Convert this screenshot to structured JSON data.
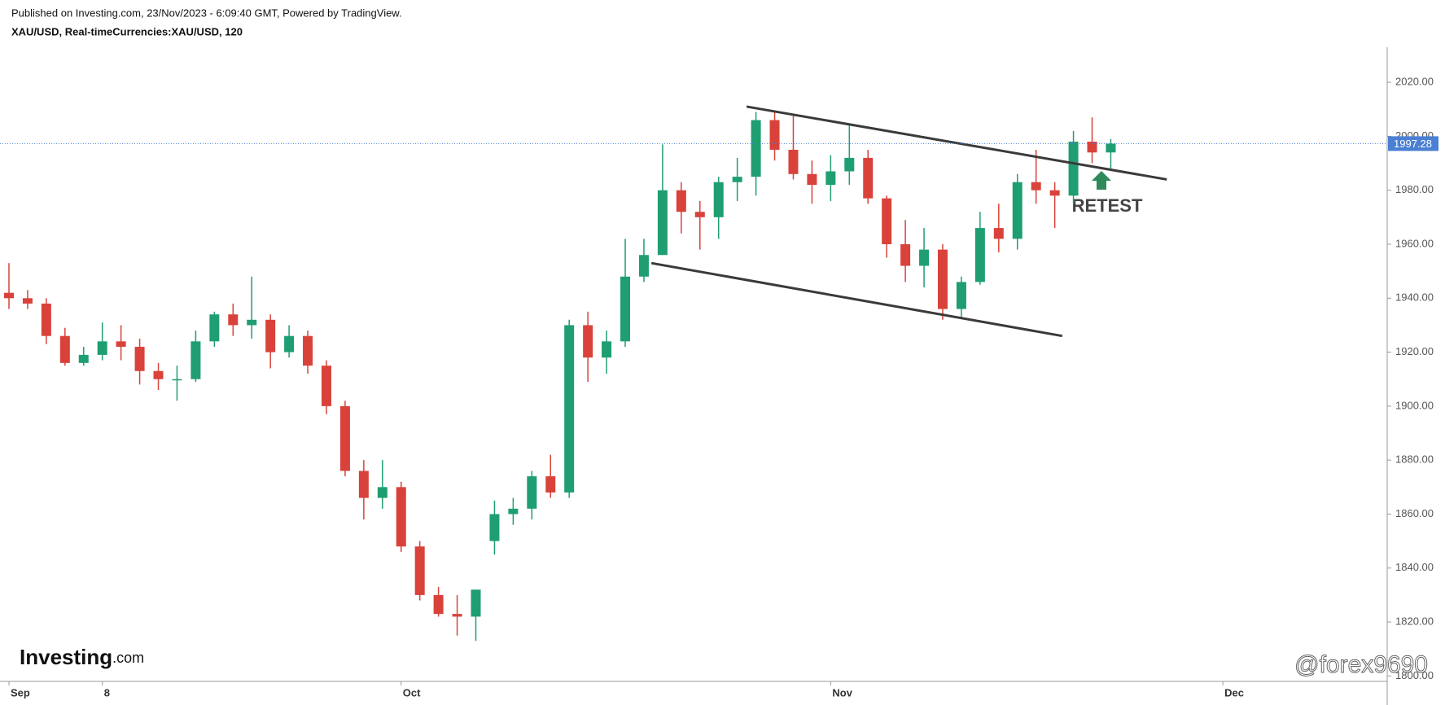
{
  "chart_data": {
    "type": "candlestick",
    "subtitle": "Published on Investing.com, 23/Nov/2023 - 6:09:40 GMT, Powered by TradingView.",
    "title": "XAU/USD, Real-timeCurrencies:XAU/USD, 120",
    "categories": [
      "Sep",
      null,
      null,
      null,
      null,
      "8",
      null,
      null,
      null,
      null,
      null,
      null,
      null,
      null,
      null,
      null,
      null,
      null,
      null,
      null,
      null,
      "Oct",
      null,
      null,
      null,
      null,
      null,
      null,
      null,
      null,
      null,
      null,
      null,
      null,
      null,
      null,
      null,
      null,
      null,
      null,
      null,
      null,
      null,
      null,
      "Nov",
      null,
      null,
      null,
      null,
      null,
      null,
      null,
      null,
      null,
      null,
      null,
      null,
      null,
      null,
      null,
      null,
      null,
      null,
      null,
      null,
      "Dec",
      null,
      null,
      null,
      null,
      null,
      null,
      null,
      null
    ],
    "open": [
      1942,
      1940,
      1938,
      1926,
      1916,
      1919,
      1924,
      1922,
      1913,
      1910,
      1910,
      1924,
      1934,
      1930,
      1932,
      1920,
      1926,
      1915,
      1900,
      1876,
      1866,
      1870,
      1848,
      1830,
      1823,
      1822,
      1850,
      1860,
      1862,
      1874,
      1868,
      1930,
      1918,
      1924,
      1948,
      1956,
      1980,
      1972,
      1970,
      1983,
      1985,
      2006,
      1995,
      1986,
      1982,
      1987,
      1992,
      1977,
      1960,
      1952,
      1958,
      1936,
      1946,
      1966,
      1962,
      1983,
      1980,
      1978,
      1998,
      1994,
      null,
      null,
      null,
      null,
      null,
      null,
      null,
      null,
      null,
      null,
      null,
      null,
      null,
      null
    ],
    "high": [
      1953,
      1943,
      1940,
      1929,
      1922,
      1931,
      1930,
      1925,
      1916,
      1915,
      1928,
      1935,
      1938,
      1948,
      1934,
      1930,
      1928,
      1917,
      1902,
      1880,
      1880,
      1872,
      1850,
      1833,
      1830,
      1831,
      1865,
      1866,
      1876,
      1882,
      1932,
      1935,
      1928,
      1962,
      1962,
      1997,
      1983,
      1976,
      1985,
      1992,
      2009,
      2009,
      2008,
      1991,
      1993,
      2004,
      1995,
      1978,
      1969,
      1966,
      1960,
      1948,
      1972,
      1975,
      1986,
      1995,
      1983,
      2002,
      2007,
      1999,
      null,
      null,
      null,
      null,
      null,
      null,
      null,
      null,
      null,
      null,
      null,
      null,
      null,
      null
    ],
    "low": [
      1936,
      1936,
      1923,
      1915,
      1915,
      1917,
      1917,
      1908,
      1906,
      1902,
      1909,
      1922,
      1926,
      1925,
      1914,
      1918,
      1912,
      1897,
      1874,
      1858,
      1862,
      1846,
      1828,
      1822,
      1815,
      1813,
      1845,
      1856,
      1858,
      1866,
      1866,
      1909,
      1912,
      1922,
      1946,
      1956,
      1964,
      1958,
      1962,
      1976,
      1978,
      1991,
      1984,
      1975,
      1976,
      1982,
      1975,
      1955,
      1946,
      1944,
      1932,
      1933,
      1945,
      1957,
      1958,
      1975,
      1966,
      1975,
      1990,
      1988,
      null,
      null,
      null,
      null,
      null,
      null,
      null,
      null,
      null,
      null,
      null,
      null,
      null,
      null
    ],
    "close": [
      1940,
      1938,
      1926,
      1916,
      1919,
      1924,
      1922,
      1913,
      1910,
      1910,
      1924,
      1934,
      1930,
      1932,
      1920,
      1926,
      1915,
      1900,
      1876,
      1866,
      1870,
      1848,
      1830,
      1823,
      1822,
      1832,
      1860,
      1862,
      1874,
      1868,
      1930,
      1918,
      1924,
      1948,
      1956,
      1980,
      1972,
      1970,
      1983,
      1985,
      2006,
      1995,
      1986,
      1982,
      1987,
      1992,
      1977,
      1960,
      1952,
      1958,
      1936,
      1946,
      1966,
      1962,
      1983,
      1980,
      1978,
      1998,
      1994,
      1997.28,
      null,
      null,
      null,
      null,
      null,
      null,
      null,
      null,
      null,
      null,
      null,
      null,
      null,
      null
    ],
    "up_color": "#1f9e72",
    "down_color": "#d9423a",
    "ylim": [
      1798,
      2033
    ],
    "yticks": [
      {
        "value": 1800,
        "label": "1800.00"
      },
      {
        "value": 1820,
        "label": "1820.00"
      },
      {
        "value": 1840,
        "label": "1840.00"
      },
      {
        "value": 1860,
        "label": "1860.00"
      },
      {
        "value": 1880,
        "label": "1880.00"
      },
      {
        "value": 1900,
        "label": "1900.00"
      },
      {
        "value": 1920,
        "label": "1920.00"
      },
      {
        "value": 1940,
        "label": "1940.00"
      },
      {
        "value": 1960,
        "label": "1960.00"
      },
      {
        "value": 1980,
        "label": "1980.00"
      },
      {
        "value": 2000,
        "label": "2000.00"
      },
      {
        "value": 2020,
        "label": "2020.00"
      }
    ],
    "current_price": 1997.28,
    "trendlines": [
      {
        "x": [
          39.5,
          62
        ],
        "y": [
          2011,
          1984
        ]
      },
      {
        "x": [
          34.4,
          56.4
        ],
        "y": [
          1953,
          1926
        ]
      }
    ],
    "annotation": "RETEST",
    "logo": {
      "brand": "Investing",
      "suffix": ".com"
    },
    "watermark": "@forex9690"
  }
}
